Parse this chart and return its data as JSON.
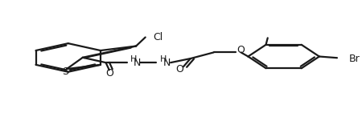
{
  "background_color": "#ffffff",
  "line_color": "#1a1a1a",
  "line_width": 1.6,
  "figsize": [
    4.5,
    1.71
  ],
  "dpi": 100,
  "xlim": [
    0,
    10
  ],
  "ylim": [
    0,
    10
  ]
}
